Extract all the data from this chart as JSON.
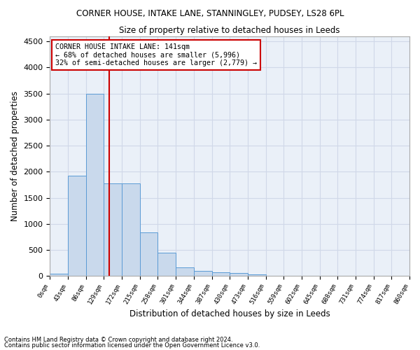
{
  "title": "CORNER HOUSE, INTAKE LANE, STANNINGLEY, PUDSEY, LS28 6PL",
  "subtitle": "Size of property relative to detached houses in Leeds",
  "xlabel": "Distribution of detached houses by size in Leeds",
  "ylabel": "Number of detached properties",
  "bar_color": "#c9d9ec",
  "bar_edge_color": "#5b9bd5",
  "grid_color": "#d0d8e8",
  "background_color": "#eaf0f8",
  "annotation_line_color": "#cc0000",
  "annotation_box_color": "#cc0000",
  "property_line_x": 141,
  "annotation_title": "CORNER HOUSE INTAKE LANE: 141sqm",
  "annotation_line1": "← 68% of detached houses are smaller (5,996)",
  "annotation_line2": "32% of semi-detached houses are larger (2,779) →",
  "footer1": "Contains HM Land Registry data © Crown copyright and database right 2024.",
  "footer2": "Contains public sector information licensed under the Open Government Licence v3.0.",
  "bin_edges": [
    0,
    43,
    86,
    129,
    172,
    215,
    258,
    301,
    344,
    387,
    430,
    473,
    516,
    559,
    602,
    645,
    688,
    731,
    774,
    817,
    860
  ],
  "bin_labels": [
    "0sqm",
    "43sqm",
    "86sqm",
    "129sqm",
    "172sqm",
    "215sqm",
    "258sqm",
    "301sqm",
    "344sqm",
    "387sqm",
    "430sqm",
    "473sqm",
    "516sqm",
    "559sqm",
    "602sqm",
    "645sqm",
    "688sqm",
    "731sqm",
    "774sqm",
    "817sqm",
    "860sqm"
  ],
  "counts": [
    40,
    1920,
    3500,
    1780,
    1780,
    840,
    450,
    160,
    100,
    65,
    55,
    35,
    0,
    0,
    0,
    0,
    0,
    0,
    0,
    0
  ],
  "ylim": [
    0,
    4600
  ],
  "yticks": [
    0,
    500,
    1000,
    1500,
    2000,
    2500,
    3000,
    3500,
    4000,
    4500
  ]
}
